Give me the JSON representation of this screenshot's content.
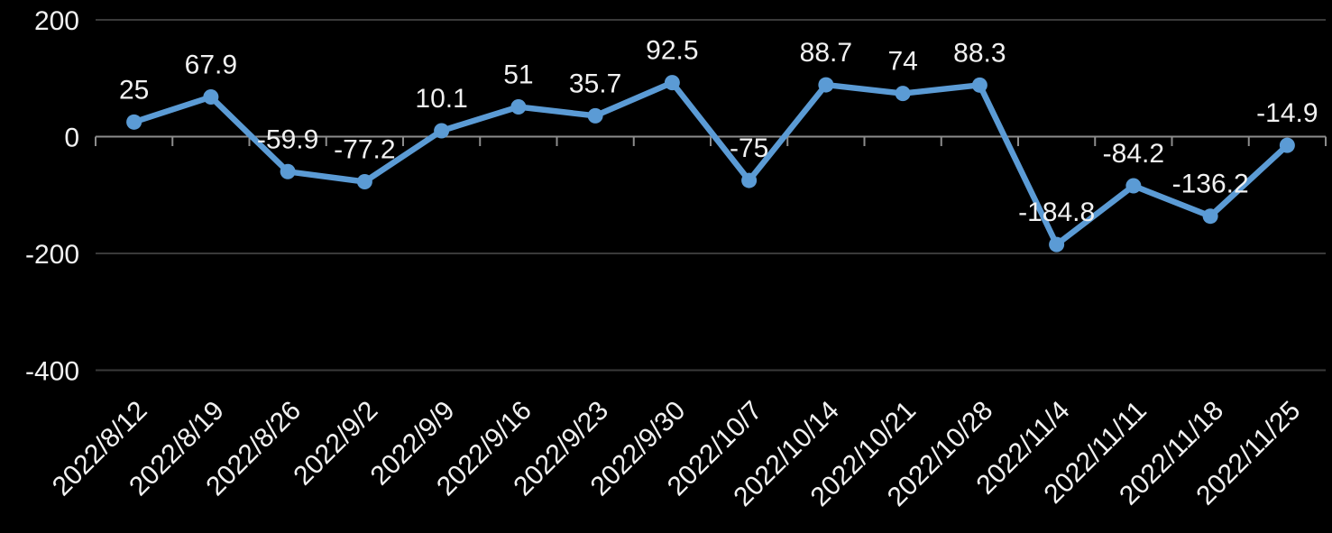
{
  "chart_data": {
    "type": "line",
    "title": "",
    "categories": [
      "2022/8/12",
      "2022/8/19",
      "2022/8/26",
      "2022/9/2",
      "2022/9/9",
      "2022/9/16",
      "2022/9/23",
      "2022/9/30",
      "2022/10/7",
      "2022/10/14",
      "2022/10/21",
      "2022/10/28",
      "2022/11/4",
      "2022/11/11",
      "2022/11/18",
      "2022/11/25"
    ],
    "values": [
      25,
      67.9,
      -59.9,
      -77.2,
      10.1,
      51,
      35.7,
      92.5,
      -75,
      88.7,
      74,
      88.3,
      -184.8,
      -84.2,
      -136.2,
      -14.9
    ],
    "data_labels": [
      "25",
      "67.9",
      "-59.9",
      "-77.2",
      "10.1",
      "51",
      "35.7",
      "92.5",
      "-75",
      "88.7",
      "74",
      "88.3",
      "-184.8",
      "-84.2",
      "-136.2",
      "-14.9"
    ],
    "data_label_position": "above",
    "xlabel": "",
    "ylabel": "",
    "y_ticks": [
      200,
      0,
      -200,
      -400
    ],
    "ylim": [
      -400,
      200
    ],
    "grid": true,
    "legend": "none",
    "marker": "circle",
    "colors": {
      "background": "#000000",
      "series_line": "#5B9BD5",
      "marker_fill": "#5B9BD5",
      "data_label_text": "#F1F1F1",
      "axis_tick_text": "#F1F1F1",
      "gridline": "#3A3A3A",
      "axis_line": "#8C8C8C"
    }
  }
}
